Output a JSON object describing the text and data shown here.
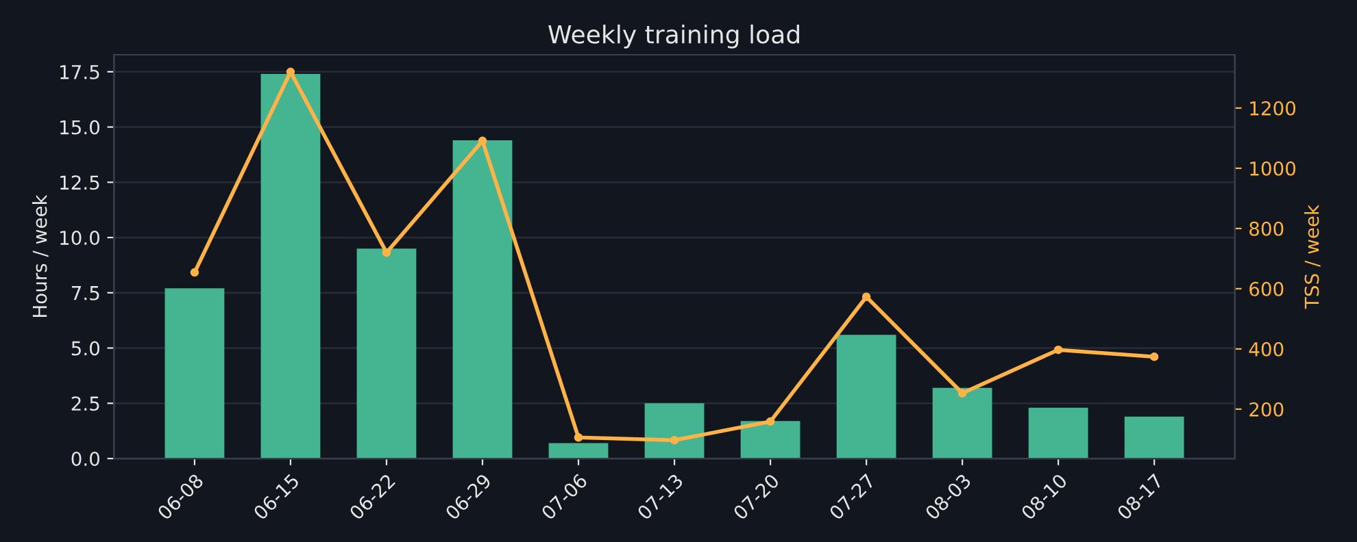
{
  "chart_data": {
    "type": "bar",
    "title": "Weekly training load",
    "ylabel": "Hours / week",
    "y2label": "TSS / week",
    "categories": [
      "06-08",
      "06-15",
      "06-22",
      "06-29",
      "07-06",
      "07-13",
      "07-20",
      "07-27",
      "08-03",
      "08-10",
      "08-17"
    ],
    "series": [
      {
        "color": "#45b491",
        "values": [
          7.7,
          17.4,
          9.5,
          14.4,
          0.7,
          2.5,
          1.7,
          5.6,
          3.2,
          2.3,
          1.9
        ]
      },
      {
        "type": "line",
        "axis": "y2",
        "color": "#ffb347",
        "values": [
          654,
          1320,
          720,
          1091,
          106,
          97,
          159,
          573,
          253,
          397,
          374
        ]
      }
    ],
    "ylim": [
      0,
      18.27
    ],
    "yticks": [
      {
        "value": 0,
        "label": "0.0"
      },
      2.5,
      {
        "value": 5,
        "label": "5.0"
      },
      7.5,
      {
        "value": 10,
        "label": "10.0"
      },
      12.5,
      {
        "value": 15,
        "label": "15.0"
      },
      17.5
    ],
    "y2lim": [
      36,
      1377
    ],
    "y2ticks": [
      200,
      400,
      600,
      800,
      1000,
      1200
    ],
    "grid": "y",
    "marker": "circle",
    "line_style": "solid"
  }
}
